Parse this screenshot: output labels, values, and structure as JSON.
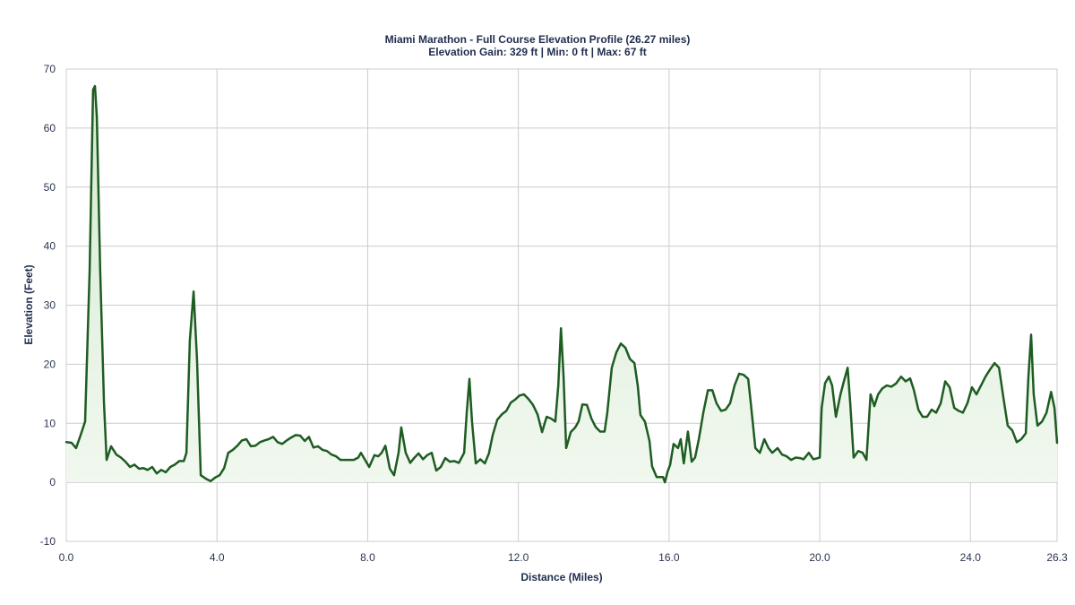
{
  "chart_data": {
    "type": "area",
    "title": "Miami Marathon - Full Course Elevation Profile (26.27 miles)",
    "subtitle": "Elevation Gain: 329 ft | Min: 0 ft | Max: 67 ft",
    "xlabel": "Distance (Miles)",
    "ylabel": "Elevation (Feet)",
    "xlim": [
      0,
      26.3
    ],
    "ylim": [
      -10,
      70
    ],
    "x_ticks": [
      "0.0",
      "4.0",
      "8.0",
      "12.0",
      "16.0",
      "20.0",
      "24.0",
      "26.3"
    ],
    "x_tick_values": [
      0,
      4,
      8,
      12,
      16,
      20,
      24,
      26.3
    ],
    "y_ticks": [
      "-10",
      "0",
      "10",
      "20",
      "30",
      "40",
      "50",
      "60",
      "70"
    ],
    "y_tick_values": [
      -10,
      0,
      10,
      20,
      30,
      40,
      50,
      60,
      70
    ],
    "grid": true,
    "legend": "none",
    "colors": {
      "line": "#1e5c22",
      "fill": "#e3f1e1"
    },
    "x": [
      0.0,
      0.14,
      0.26,
      0.38,
      0.5,
      0.62,
      0.71,
      0.76,
      0.81,
      0.9,
      1.0,
      1.07,
      1.19,
      1.33,
      1.45,
      1.57,
      1.69,
      1.81,
      1.93,
      2.05,
      2.16,
      2.28,
      2.4,
      2.52,
      2.64,
      2.76,
      2.88,
      3.0,
      3.12,
      3.19,
      3.28,
      3.38,
      3.47,
      3.57,
      3.71,
      3.83,
      3.95,
      4.07,
      4.19,
      4.3,
      4.42,
      4.54,
      4.66,
      4.78,
      4.9,
      5.02,
      5.14,
      5.26,
      5.37,
      5.49,
      5.61,
      5.73,
      5.85,
      5.97,
      6.09,
      6.21,
      6.33,
      6.44,
      6.56,
      6.68,
      6.8,
      6.92,
      7.04,
      7.16,
      7.28,
      7.4,
      7.51,
      7.63,
      7.75,
      7.82,
      7.92,
      8.04,
      8.18,
      8.28,
      8.37,
      8.47,
      8.59,
      8.7,
      8.82,
      8.89,
      9.01,
      9.13,
      9.23,
      9.35,
      9.47,
      9.58,
      9.7,
      9.82,
      9.94,
      10.06,
      10.18,
      10.3,
      10.42,
      10.56,
      10.63,
      10.7,
      10.77,
      10.87,
      10.99,
      11.11,
      11.22,
      11.32,
      11.44,
      11.56,
      11.68,
      11.8,
      11.91,
      12.03,
      12.15,
      12.27,
      12.39,
      12.51,
      12.63,
      12.75,
      12.87,
      12.98,
      13.06,
      13.13,
      13.2,
      13.27,
      13.39,
      13.51,
      13.6,
      13.7,
      13.82,
      13.94,
      14.05,
      14.17,
      14.29,
      14.36,
      14.48,
      14.6,
      14.72,
      14.84,
      14.96,
      15.08,
      15.17,
      15.24,
      15.36,
      15.48,
      15.55,
      15.67,
      15.84,
      15.89,
      15.96,
      16.03,
      16.12,
      16.24,
      16.31,
      16.39,
      16.5,
      16.6,
      16.69,
      16.79,
      16.91,
      17.03,
      17.15,
      17.26,
      17.38,
      17.5,
      17.62,
      17.74,
      17.86,
      17.98,
      18.1,
      18.17,
      18.29,
      18.41,
      18.53,
      18.64,
      18.74,
      18.88,
      19.0,
      19.12,
      19.24,
      19.36,
      19.48,
      19.57,
      19.71,
      19.83,
      20.0,
      20.05,
      20.14,
      20.24,
      20.33,
      20.43,
      20.55,
      20.64,
      20.74,
      20.81,
      20.9,
      21.02,
      21.14,
      21.24,
      21.35,
      21.45,
      21.55,
      21.66,
      21.78,
      21.9,
      22.02,
      22.16,
      22.28,
      22.4,
      22.5,
      22.62,
      22.73,
      22.85,
      22.97,
      23.09,
      23.21,
      23.33,
      23.45,
      23.57,
      23.69,
      23.8,
      23.92,
      24.04,
      24.16,
      24.28,
      24.4,
      24.52,
      24.64,
      24.76,
      24.88,
      24.99,
      25.11,
      25.23,
      25.35,
      25.47,
      25.54,
      25.61,
      25.68,
      25.78,
      25.9,
      26.02,
      26.14,
      26.23,
      26.3
    ],
    "y": [
      6.8,
      6.7,
      5.8,
      8.0,
      10.3,
      36.1,
      66.5,
      67.1,
      61.9,
      36.1,
      13.4,
      3.8,
      6.1,
      4.7,
      4.2,
      3.5,
      2.6,
      3.0,
      2.3,
      2.4,
      2.1,
      2.6,
      1.5,
      2.1,
      1.7,
      2.6,
      3.0,
      3.6,
      3.6,
      5.0,
      24.0,
      32.3,
      20.9,
      1.2,
      0.6,
      0.2,
      0.8,
      1.2,
      2.4,
      5.0,
      5.5,
      6.2,
      7.1,
      7.3,
      6.1,
      6.2,
      6.8,
      7.1,
      7.3,
      7.7,
      6.8,
      6.5,
      7.1,
      7.6,
      8.0,
      7.9,
      7.0,
      7.7,
      5.9,
      6.1,
      5.5,
      5.3,
      4.7,
      4.4,
      3.8,
      3.8,
      3.8,
      3.8,
      4.2,
      5.0,
      3.9,
      2.6,
      4.6,
      4.4,
      5.0,
      6.2,
      2.3,
      1.2,
      5.0,
      9.3,
      5.0,
      3.3,
      4.1,
      4.9,
      3.9,
      4.6,
      5.0,
      2.0,
      2.6,
      4.1,
      3.5,
      3.6,
      3.3,
      5.0,
      11.8,
      17.5,
      10.3,
      3.2,
      3.9,
      3.2,
      4.9,
      8.0,
      10.6,
      11.5,
      12.1,
      13.5,
      14.0,
      14.7,
      14.9,
      14.1,
      13.1,
      11.5,
      8.5,
      11.1,
      10.8,
      10.3,
      16.4,
      26.1,
      17.9,
      5.8,
      8.5,
      9.3,
      10.3,
      13.2,
      13.1,
      10.8,
      9.4,
      8.6,
      8.6,
      11.8,
      19.4,
      22.0,
      23.5,
      22.8,
      20.9,
      20.2,
      16.4,
      11.4,
      10.3,
      7.0,
      2.7,
      0.9,
      0.9,
      0.0,
      1.8,
      3.0,
      6.5,
      5.8,
      7.3,
      3.2,
      8.6,
      3.5,
      4.2,
      7.3,
      11.8,
      15.6,
      15.6,
      13.4,
      12.1,
      12.3,
      13.4,
      16.4,
      18.4,
      18.2,
      17.5,
      13.4,
      5.8,
      5.0,
      7.3,
      5.8,
      5.0,
      5.8,
      4.7,
      4.4,
      3.8,
      4.2,
      4.1,
      3.9,
      5.0,
      3.9,
      4.2,
      12.6,
      16.8,
      17.9,
      16.4,
      11.1,
      14.9,
      17.1,
      19.4,
      13.4,
      4.2,
      5.3,
      5.0,
      3.8,
      14.9,
      12.9,
      14.9,
      15.9,
      16.4,
      16.2,
      16.7,
      17.9,
      17.1,
      17.6,
      15.6,
      12.3,
      11.1,
      11.1,
      12.3,
      11.8,
      13.4,
      17.1,
      16.1,
      12.6,
      12.1,
      11.8,
      13.4,
      16.1,
      14.9,
      16.4,
      17.9,
      19.1,
      20.2,
      19.4,
      14.1,
      9.6,
      8.8,
      6.8,
      7.3,
      8.3,
      17.9,
      25.0,
      14.9,
      9.6,
      10.3,
      11.8,
      15.3,
      12.6,
      6.7
    ]
  }
}
